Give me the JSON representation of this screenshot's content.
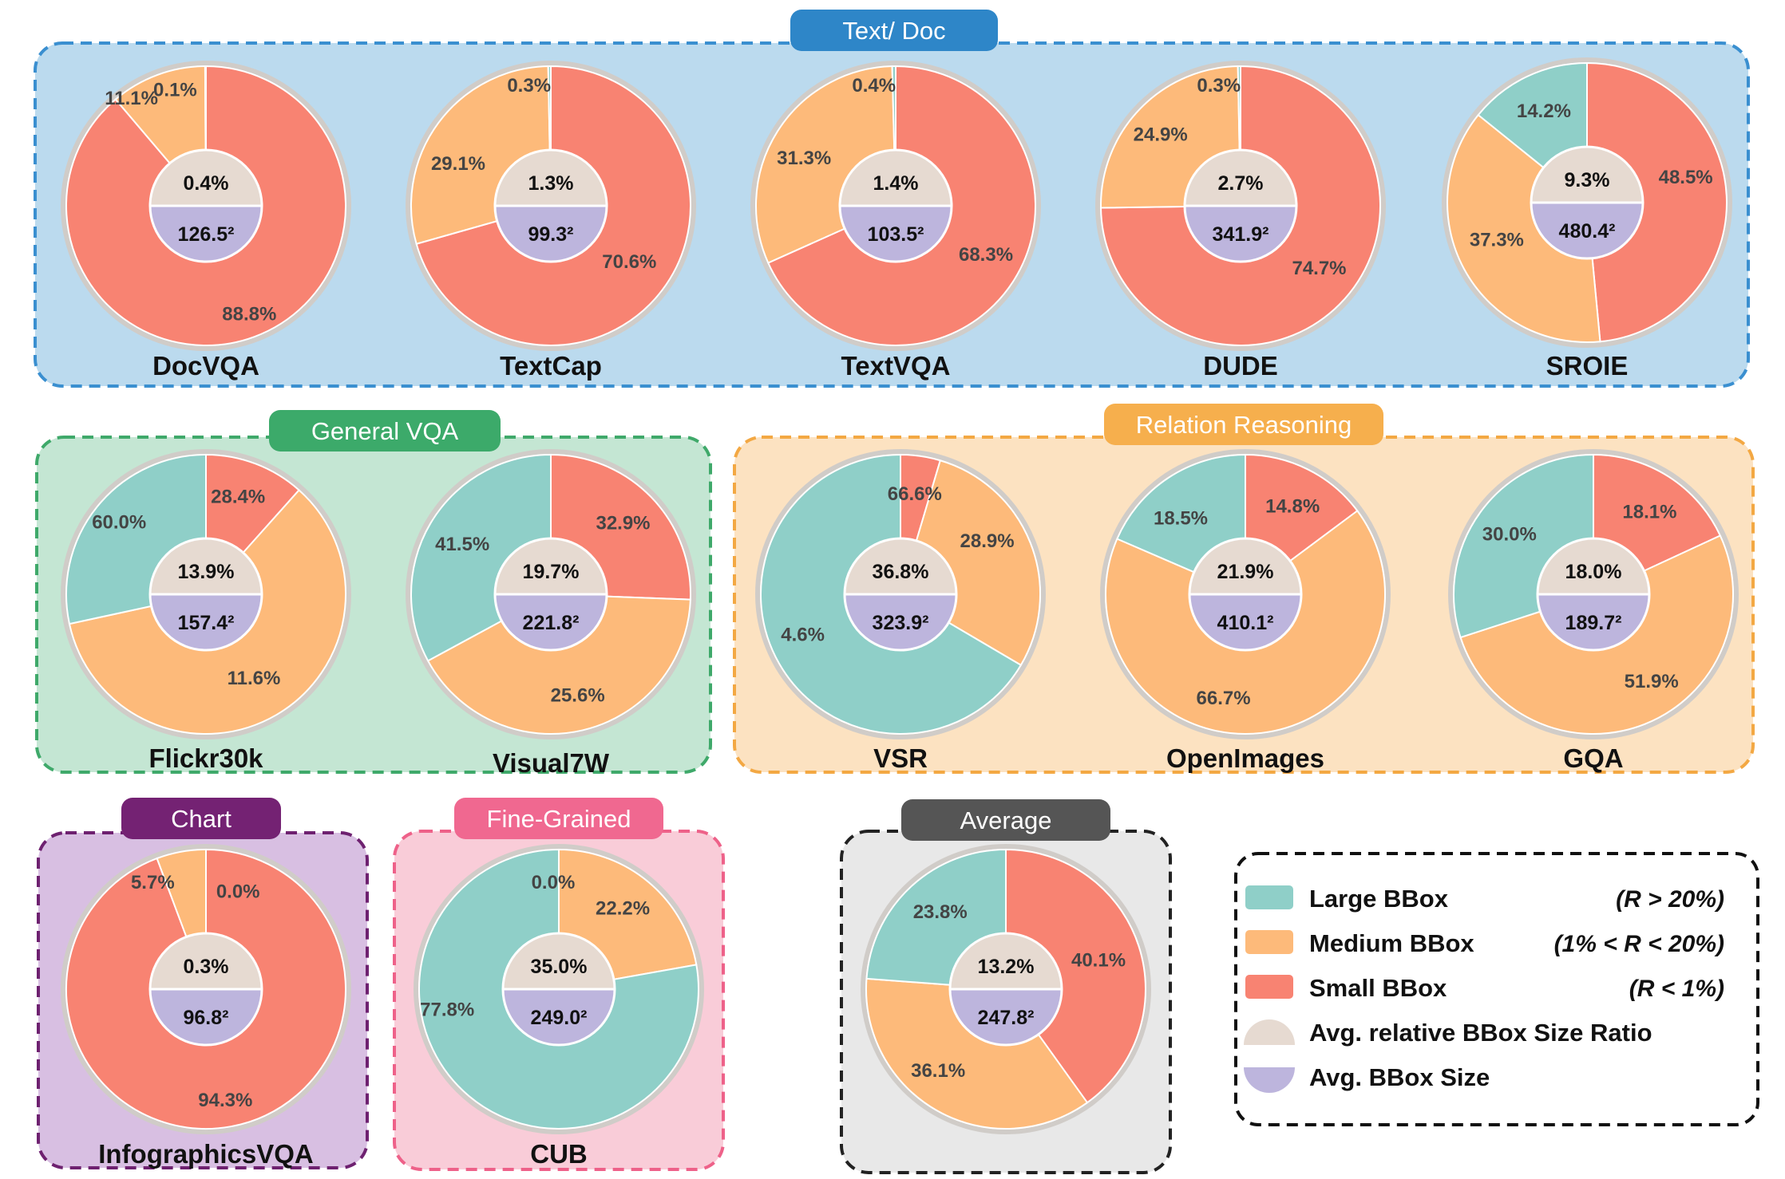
{
  "colors": {
    "large": "#8FCFC8",
    "medium": "#FDBA7A",
    "small": "#F88372",
    "ratio": "#E6DAD1",
    "size": "#BDB5DD"
  },
  "groups": [
    {
      "key": "text-doc",
      "title": "Text/ Doc",
      "fill": "#BBDAEE",
      "stroke": "#3A8FD0",
      "tag": "#2E86C8"
    },
    {
      "key": "general-vqa",
      "title": "General VQA",
      "fill": "#C4E6D3",
      "stroke": "#3FA96A",
      "tag": "#3CAA6A"
    },
    {
      "key": "relation-reasoning",
      "title": "Relation Reasoning",
      "fill": "#FCE2C1",
      "stroke": "#F3A843",
      "tag": "#F6AF4D"
    },
    {
      "key": "chart",
      "title": "Chart",
      "fill": "#D8BFE2",
      "stroke": "#6E2170",
      "tag": "#742273"
    },
    {
      "key": "fine-grained",
      "title": "Fine-Grained",
      "fill": "#F9CCD8",
      "stroke": "#EE6189",
      "tag": "#F06890"
    },
    {
      "key": "average",
      "title": "Average",
      "fill": "#E8E8E8",
      "stroke": "#222222",
      "tag": "#555555"
    }
  ],
  "chart_data": [
    {
      "type": "pie",
      "title": "DocVQA",
      "series": [
        {
          "name": "Large BBox",
          "value": 0.1
        },
        {
          "name": "Medium BBox",
          "value": 11.1
        },
        {
          "name": "Small BBox",
          "value": 88.8
        }
      ],
      "labels": [
        "0.1%",
        "11.1%",
        "88.8%"
      ],
      "ratio_label": "0.4%",
      "size_label": "126.5²"
    },
    {
      "type": "pie",
      "title": "TextCap",
      "series": [
        {
          "name": "Large BBox",
          "value": 0.3
        },
        {
          "name": "Medium BBox",
          "value": 29.1
        },
        {
          "name": "Small BBox",
          "value": 70.6
        }
      ],
      "labels": [
        "0.3%",
        "29.1%",
        "70.6%"
      ],
      "ratio_label": "1.3%",
      "size_label": "99.3²"
    },
    {
      "type": "pie",
      "title": "TextVQA",
      "series": [
        {
          "name": "Large BBox",
          "value": 0.4
        },
        {
          "name": "Medium BBox",
          "value": 31.3
        },
        {
          "name": "Small BBox",
          "value": 68.3
        }
      ],
      "labels": [
        "0.4%",
        "31.3%",
        "68.3%"
      ],
      "ratio_label": "1.4%",
      "size_label": "103.5²"
    },
    {
      "type": "pie",
      "title": "DUDE",
      "series": [
        {
          "name": "Large BBox",
          "value": 0.3
        },
        {
          "name": "Medium BBox",
          "value": 24.9
        },
        {
          "name": "Small BBox",
          "value": 74.7
        }
      ],
      "labels": [
        "0.3%",
        "24.9%",
        "74.7%"
      ],
      "ratio_label": "2.7%",
      "size_label": "341.9²"
    },
    {
      "type": "pie",
      "title": "SROIE",
      "series": [
        {
          "name": "Large BBox",
          "value": 14.2
        },
        {
          "name": "Medium BBox",
          "value": 37.3
        },
        {
          "name": "Small BBox",
          "value": 48.5
        }
      ],
      "labels": [
        "14.2%",
        "37.3%",
        "48.5%"
      ],
      "ratio_label": "9.3%",
      "size_label": "480.4²"
    },
    {
      "type": "pie",
      "title": "Flickr30k",
      "series": [
        {
          "name": "Large BBox",
          "value": 28.4
        },
        {
          "name": "Medium BBox",
          "value": 60.0
        },
        {
          "name": "Small BBox",
          "value": 11.6
        }
      ],
      "labels": [
        "28.4%",
        "60.0%",
        "11.6%"
      ],
      "ratio_label": "13.9%",
      "size_label": "157.4²"
    },
    {
      "type": "pie",
      "title": "Visual7W",
      "series": [
        {
          "name": "Large BBox",
          "value": 32.9
        },
        {
          "name": "Medium BBox",
          "value": 41.5
        },
        {
          "name": "Small BBox",
          "value": 25.6
        }
      ],
      "labels": [
        "32.9%",
        "41.5%",
        "25.6%"
      ],
      "ratio_label": "19.7%",
      "size_label": "221.8²"
    },
    {
      "type": "pie",
      "title": "VSR",
      "series": [
        {
          "name": "Large BBox",
          "value": 66.6
        },
        {
          "name": "Medium BBox",
          "value": 28.9
        },
        {
          "name": "Small BBox",
          "value": 4.6
        }
      ],
      "labels": [
        "66.6%",
        "28.9%",
        "4.6%"
      ],
      "ratio_label": "36.8%",
      "size_label": "323.9²"
    },
    {
      "type": "pie",
      "title": "OpenImages",
      "series": [
        {
          "name": "Large BBox",
          "value": 18.5
        },
        {
          "name": "Medium BBox",
          "value": 66.7
        },
        {
          "name": "Small BBox",
          "value": 14.8
        }
      ],
      "labels": [
        "18.5%",
        "66.7%",
        "14.8%"
      ],
      "ratio_label": "21.9%",
      "size_label": "410.1²"
    },
    {
      "type": "pie",
      "title": "GQA",
      "series": [
        {
          "name": "Large BBox",
          "value": 30.0
        },
        {
          "name": "Medium BBox",
          "value": 51.9
        },
        {
          "name": "Small BBox",
          "value": 18.1
        }
      ],
      "labels": [
        "30.0%",
        "51.9%",
        "18.1%"
      ],
      "ratio_label": "18.0%",
      "size_label": "189.7²"
    },
    {
      "type": "pie",
      "title": "InfographicsVQA",
      "series": [
        {
          "name": "Large BBox",
          "value": 0.0
        },
        {
          "name": "Medium BBox",
          "value": 5.7
        },
        {
          "name": "Small BBox",
          "value": 94.3
        }
      ],
      "labels": [
        "0.0%",
        "5.7%",
        "94.3%"
      ],
      "ratio_label": "0.3%",
      "size_label": "96.8²"
    },
    {
      "type": "pie",
      "title": "CUB",
      "series": [
        {
          "name": "Large BBox",
          "value": 77.8
        },
        {
          "name": "Medium BBox",
          "value": 22.2
        },
        {
          "name": "Small BBox",
          "value": 0.0
        }
      ],
      "labels": [
        "77.8%",
        "22.2%",
        "0.0%"
      ],
      "ratio_label": "35.0%",
      "size_label": "249.0²"
    },
    {
      "type": "pie",
      "title": "",
      "series": [
        {
          "name": "Large BBox",
          "value": 23.8
        },
        {
          "name": "Medium BBox",
          "value": 36.1
        },
        {
          "name": "Small BBox",
          "value": 40.1
        }
      ],
      "labels": [
        "23.8%",
        "36.1%",
        "40.1%"
      ],
      "ratio_label": "13.2%",
      "size_label": "247.8²"
    }
  ],
  "legend": [
    {
      "key": "large",
      "label": "Large BBox",
      "condition": "(R > 20%)"
    },
    {
      "key": "medium",
      "label": "Medium BBox",
      "condition": "(1% < R < 20%)"
    },
    {
      "key": "small",
      "label": "Small BBox",
      "condition": "(R < 1%)"
    },
    {
      "key": "ratio",
      "label": "Avg. relative BBox Size Ratio",
      "condition": ""
    },
    {
      "key": "size",
      "label": "Avg. BBox Size",
      "condition": ""
    }
  ]
}
